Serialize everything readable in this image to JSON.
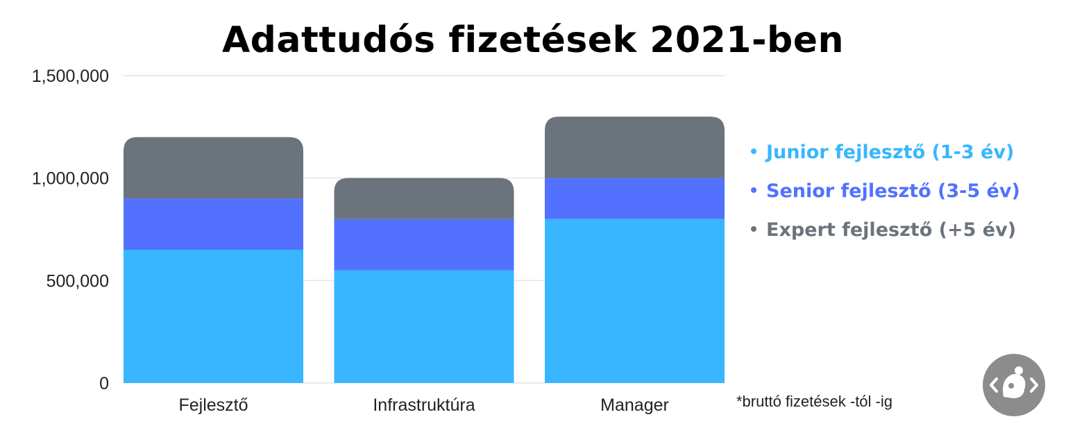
{
  "chart_data": {
    "type": "bar",
    "stacked": true,
    "title": "Adattudós fizetések 2021-ben",
    "categories": [
      "Fejlesztő",
      "Infrastruktúra",
      "Manager"
    ],
    "series": [
      {
        "name": "Junior fejlesztő (1-3 év)",
        "color": "#38b6ff",
        "values": [
          650000,
          550000,
          800000
        ]
      },
      {
        "name": "Senior fejlesztő (3-5 év)",
        "color": "#5271ff",
        "values": [
          250000,
          250000,
          200000
        ]
      },
      {
        "name": "Expert fejlesztő (+5 év)",
        "color": "#6b737c",
        "values": [
          300000,
          200000,
          300000
        ]
      }
    ],
    "ylim": [
      0,
      1500000
    ],
    "yticks": [
      0,
      500000,
      1000000,
      1500000
    ],
    "ytick_labels": [
      "0",
      "500,000",
      "1,000,000",
      "1,500,000"
    ],
    "grid": true,
    "legend_position": "right",
    "footnote": "*bruttó fizetések -tól -ig"
  },
  "logo": {
    "icon": "code-bracket-logo-icon",
    "color": "#8c8c8c"
  }
}
